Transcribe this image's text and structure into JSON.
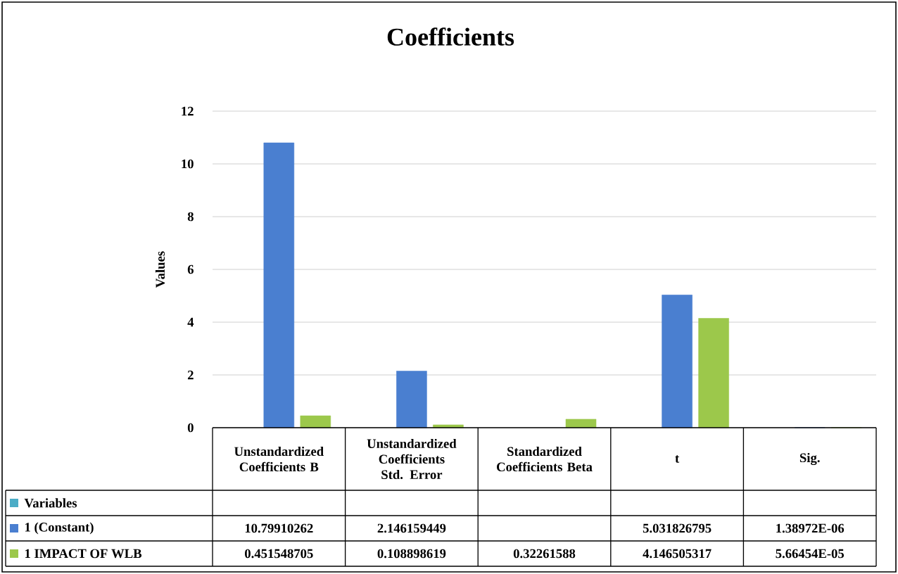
{
  "chart_data": {
    "type": "bar",
    "title": "Coefficients",
    "ylabel": "Values",
    "categories": [
      "Unstandardized Coefficients B",
      "Unstandardized Coefficients Std. Error",
      "Standardized Coefficients Beta",
      "t",
      "Sig."
    ],
    "series": [
      {
        "name": "Variables",
        "color": "#4bacc6",
        "values": [
          null,
          null,
          null,
          null,
          null
        ],
        "value_labels": [
          null,
          null,
          null,
          null,
          null
        ]
      },
      {
        "name": "1 (Constant)",
        "color": "#4a7fd0",
        "values": [
          10.79910262,
          2.146159449,
          null,
          5.031826795,
          1.38972e-06
        ],
        "value_labels": [
          "10.79910262",
          "2.146159449",
          null,
          "5.031826795",
          "1.38972E-06"
        ]
      },
      {
        "name": "1 IMPACT OF WLB",
        "color": "#9cc84b",
        "values": [
          0.451548705,
          0.108898619,
          0.32261588,
          4.146505317,
          5.66454e-05
        ],
        "value_labels": [
          "0.451548705",
          "0.108898619",
          "0.32261588",
          "4.146505317",
          "5.66454E-05"
        ]
      }
    ],
    "ylim": [
      0,
      12
    ],
    "yticks": [
      0,
      2,
      4,
      6,
      8,
      10,
      12
    ],
    "grid": "y",
    "legend": "bottom left"
  }
}
